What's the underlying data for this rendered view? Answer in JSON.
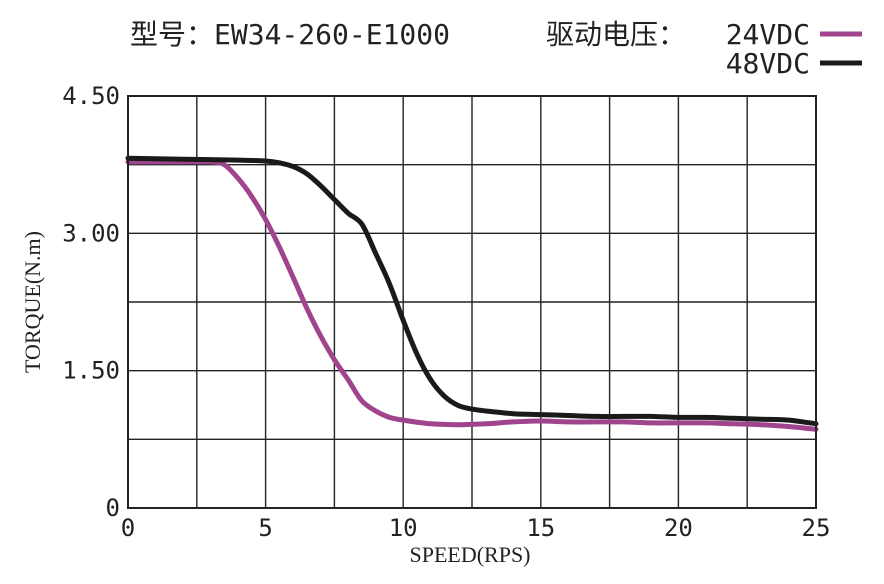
{
  "title": {
    "model_label": "型号：EW34-260-E1000",
    "voltage_label": "驱动电压："
  },
  "chart_data": {
    "type": "line",
    "xlabel": "SPEED(RPS)",
    "ylabel": "TORQUE(N.m)",
    "xlim": [
      0,
      25
    ],
    "ylim": [
      0,
      4.5
    ],
    "x_ticks": [
      0,
      5,
      10,
      15,
      20,
      25
    ],
    "x_tick_labels": [
      "0",
      "5",
      "10",
      "15",
      "20",
      "25"
    ],
    "y_ticks": [
      0,
      1.5,
      3.0,
      4.5
    ],
    "y_tick_labels": [
      "0",
      "1.50",
      "3.00",
      "4.50"
    ],
    "grid": true,
    "legend_position": "top-right",
    "series": [
      {
        "name": "24VDC",
        "color": "#a0448d",
        "x": [
          0,
          1,
          2,
          3,
          3.5,
          4,
          4.5,
          5,
          5.5,
          6,
          6.5,
          7,
          7.5,
          8,
          8.5,
          9,
          9.5,
          10,
          11,
          12,
          13,
          14,
          15,
          16,
          17,
          18,
          19,
          20,
          21,
          22,
          23,
          24,
          25
        ],
        "y": [
          3.78,
          3.78,
          3.78,
          3.78,
          3.75,
          3.6,
          3.4,
          3.15,
          2.85,
          2.52,
          2.18,
          1.88,
          1.62,
          1.4,
          1.17,
          1.06,
          0.99,
          0.96,
          0.92,
          0.91,
          0.92,
          0.94,
          0.95,
          0.94,
          0.94,
          0.94,
          0.93,
          0.93,
          0.93,
          0.92,
          0.91,
          0.89,
          0.86
        ]
      },
      {
        "name": "48VDC",
        "color": "#1a1a1a",
        "x": [
          0,
          2,
          4,
          5,
          5.5,
          6,
          6.5,
          7,
          7.5,
          8,
          8.5,
          9,
          9.5,
          10,
          10.5,
          11,
          11.5,
          12,
          12.5,
          13,
          14,
          15,
          16,
          17,
          18,
          19,
          20,
          21,
          22,
          23,
          24,
          25
        ],
        "y": [
          3.82,
          3.81,
          3.8,
          3.79,
          3.77,
          3.73,
          3.65,
          3.52,
          3.37,
          3.22,
          3.1,
          2.78,
          2.45,
          2.05,
          1.68,
          1.4,
          1.22,
          1.12,
          1.08,
          1.06,
          1.03,
          1.02,
          1.01,
          1.0,
          1.0,
          1.0,
          0.99,
          0.99,
          0.98,
          0.97,
          0.96,
          0.92
        ]
      }
    ]
  }
}
